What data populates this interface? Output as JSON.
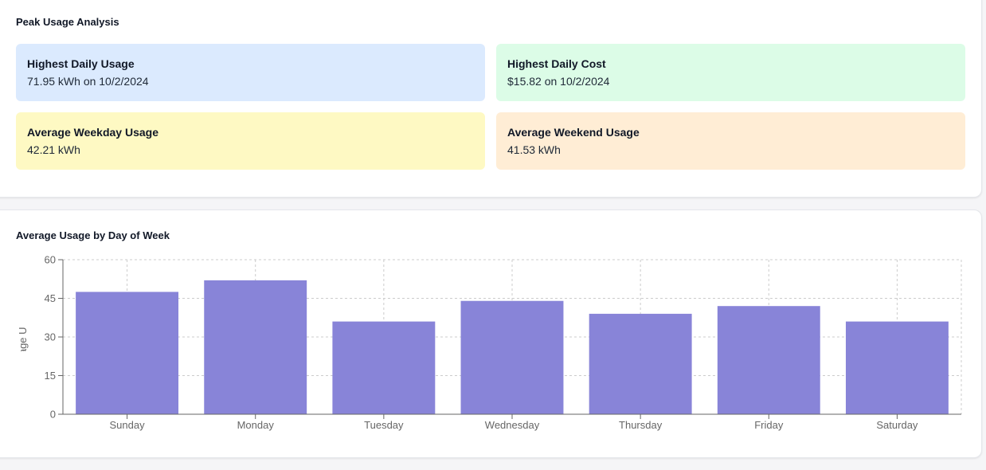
{
  "peak": {
    "title": "Peak Usage Analysis",
    "stats": [
      {
        "label": "Highest Daily Usage",
        "value": "71.95 kWh on 10/2/2024",
        "bg": "#dbeafe"
      },
      {
        "label": "Highest Daily Cost",
        "value": "$15.82 on 10/2/2024",
        "bg": "#dcfce7"
      },
      {
        "label": "Average Weekday Usage",
        "value": "42.21 kWh",
        "bg": "#fef9c3"
      },
      {
        "label": "Average Weekend Usage",
        "value": "41.53 kWh",
        "bg": "#ffedd5"
      }
    ]
  },
  "chart_section": {
    "title": "Average Usage by Day of Week"
  },
  "chart_data": {
    "type": "bar",
    "categories": [
      "Sunday",
      "Monday",
      "Tuesday",
      "Wednesday",
      "Thursday",
      "Friday",
      "Saturday"
    ],
    "values": [
      47.5,
      52,
      36,
      44,
      39,
      42,
      36
    ],
    "title": "Average Usage by Day of Week",
    "xlabel": "",
    "ylabel": "Average Usage (",
    "ylim": [
      0,
      60
    ],
    "yticks": [
      "0",
      "15",
      "30",
      "45",
      "60"
    ],
    "grid": true,
    "bar_color": "#8884d8",
    "legend": "none"
  }
}
